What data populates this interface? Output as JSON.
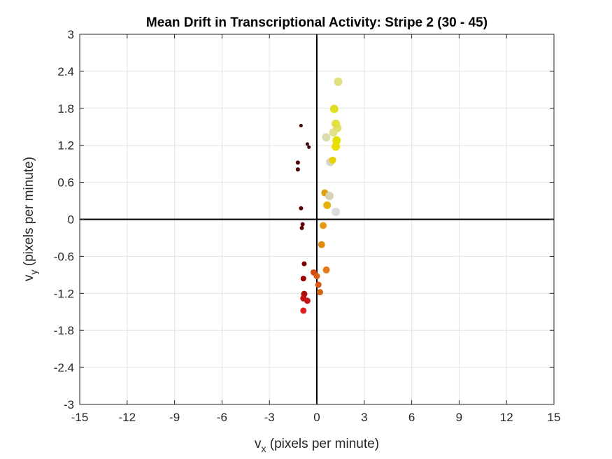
{
  "chart_data": {
    "type": "scatter",
    "title": "Mean Drift in Transcriptional Activity: Stripe 2 (30 - 45)",
    "xlabel_main": "v",
    "xlabel_sub": "x",
    "xlabel_rest": " (pixels per minute)",
    "ylabel_main": "v",
    "ylabel_sub": "y",
    "ylabel_rest": " (pixels per minute)",
    "xlim": [
      -15,
      15
    ],
    "ylim": [
      -3,
      3
    ],
    "x_ticks": [
      -15,
      -12,
      -9,
      -6,
      -3,
      0,
      3,
      6,
      9,
      12,
      15
    ],
    "x_tick_labels": [
      "-15",
      "-12",
      "-9",
      "-6",
      "-3",
      "0",
      "3",
      "6",
      "9",
      "12",
      "15"
    ],
    "y_ticks": [
      -3,
      -2.4,
      -1.8,
      -1.2,
      -0.6,
      0,
      0.6,
      1.2,
      1.8,
      2.4,
      3
    ],
    "y_tick_labels": [
      "-3",
      "-2.4",
      "-1.8",
      "-1.2",
      "-0.6",
      "0",
      "0.6",
      "1.2",
      "1.8",
      "2.4",
      "3"
    ],
    "grid": true,
    "zero_lines": true,
    "points": [
      {
        "x": -1.0,
        "y": 1.52,
        "size": 2.5,
        "color": "#3a0000"
      },
      {
        "x": -0.6,
        "y": 1.22,
        "size": 2.5,
        "color": "#3a0000"
      },
      {
        "x": -0.5,
        "y": 1.17,
        "size": 2.5,
        "color": "#3a0000"
      },
      {
        "x": -1.2,
        "y": 0.92,
        "size": 3,
        "color": "#4a0000"
      },
      {
        "x": -1.2,
        "y": 0.81,
        "size": 3,
        "color": "#4a0000"
      },
      {
        "x": -1.0,
        "y": 0.18,
        "size": 3,
        "color": "#550000"
      },
      {
        "x": -0.9,
        "y": -0.08,
        "size": 3,
        "color": "#600000"
      },
      {
        "x": -0.95,
        "y": -0.14,
        "size": 3,
        "color": "#600000"
      },
      {
        "x": -0.8,
        "y": -0.72,
        "size": 3.5,
        "color": "#800000"
      },
      {
        "x": -0.85,
        "y": -0.96,
        "size": 4,
        "color": "#990000"
      },
      {
        "x": -0.8,
        "y": -1.21,
        "size": 4.5,
        "color": "#b00a0a"
      },
      {
        "x": -0.85,
        "y": -1.28,
        "size": 4.5,
        "color": "#c01010"
      },
      {
        "x": -0.6,
        "y": -1.32,
        "size": 4.5,
        "color": "#c81515"
      },
      {
        "x": -0.85,
        "y": -1.48,
        "size": 4.5,
        "color": "#dd2020"
      },
      {
        "x": -0.2,
        "y": -0.86,
        "size": 4.5,
        "color": "#d84a10"
      },
      {
        "x": 0.0,
        "y": -0.92,
        "size": 4.5,
        "color": "#de5a10"
      },
      {
        "x": 0.1,
        "y": -1.06,
        "size": 4.5,
        "color": "#d65814"
      },
      {
        "x": 0.2,
        "y": -1.18,
        "size": 4.5,
        "color": "#d26418"
      },
      {
        "x": 0.6,
        "y": -0.82,
        "size": 5,
        "color": "#e57a18"
      },
      {
        "x": 0.3,
        "y": -0.41,
        "size": 5,
        "color": "#e08a10"
      },
      {
        "x": 0.4,
        "y": -0.1,
        "size": 5,
        "color": "#e89a10"
      },
      {
        "x": 0.5,
        "y": 0.43,
        "size": 5,
        "color": "#dca010"
      },
      {
        "x": 0.65,
        "y": 0.23,
        "size": 5.5,
        "color": "#e6b20a"
      },
      {
        "x": 0.8,
        "y": 0.38,
        "size": 6,
        "color": "#d9d2b0"
      },
      {
        "x": 1.2,
        "y": 0.12,
        "size": 6,
        "color": "#dcdcdc"
      },
      {
        "x": 0.85,
        "y": 0.93,
        "size": 6,
        "color": "#d8d6c0"
      },
      {
        "x": 1.0,
        "y": 0.96,
        "size": 5,
        "color": "#e6d000"
      },
      {
        "x": 0.6,
        "y": 1.33,
        "size": 6,
        "color": "#dcdcaa"
      },
      {
        "x": 1.05,
        "y": 1.41,
        "size": 6,
        "color": "#e0e090"
      },
      {
        "x": 1.2,
        "y": 1.18,
        "size": 6,
        "color": "#e8e000"
      },
      {
        "x": 1.25,
        "y": 1.28,
        "size": 6,
        "color": "#e4e000"
      },
      {
        "x": 1.3,
        "y": 1.48,
        "size": 6,
        "color": "#e0e070"
      },
      {
        "x": 1.2,
        "y": 1.55,
        "size": 6,
        "color": "#e0e040"
      },
      {
        "x": 1.1,
        "y": 1.79,
        "size": 6,
        "color": "#dede20"
      },
      {
        "x": 1.35,
        "y": 2.23,
        "size": 6,
        "color": "#e0de80"
      }
    ]
  }
}
